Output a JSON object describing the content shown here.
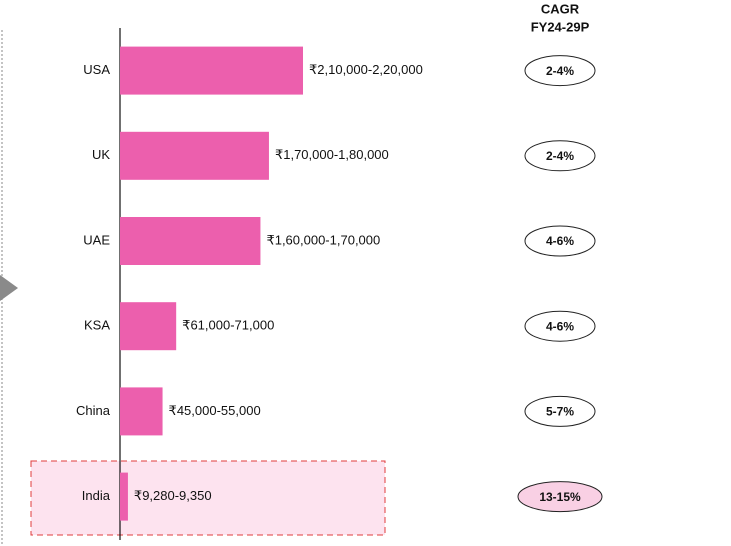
{
  "chart_data": {
    "type": "bar",
    "categories": [
      "USA",
      "UK",
      "UAE",
      "KSA",
      "China",
      "India"
    ],
    "values": [
      215000,
      175000,
      165000,
      66000,
      50000,
      9315
    ],
    "value_labels": [
      "₹2,10,000-2,20,000",
      "₹1,70,000-1,80,000",
      "₹1,60,000-1,70,000",
      "₹61,000-71,000",
      "₹45,000-55,000",
      "₹9,280-9,350"
    ],
    "color": "#ec5fad",
    "cagr_header": [
      "CAGR",
      "FY24-29P"
    ],
    "cagr": [
      "2-4%",
      "2-4%",
      "4-6%",
      "4-6%",
      "5-7%",
      "13-15%"
    ],
    "cagr_colors": [
      "#ffffff",
      "#ffffff",
      "#ffffff",
      "#ffffff",
      "#ffffff",
      "#f9d0e4"
    ]
  }
}
